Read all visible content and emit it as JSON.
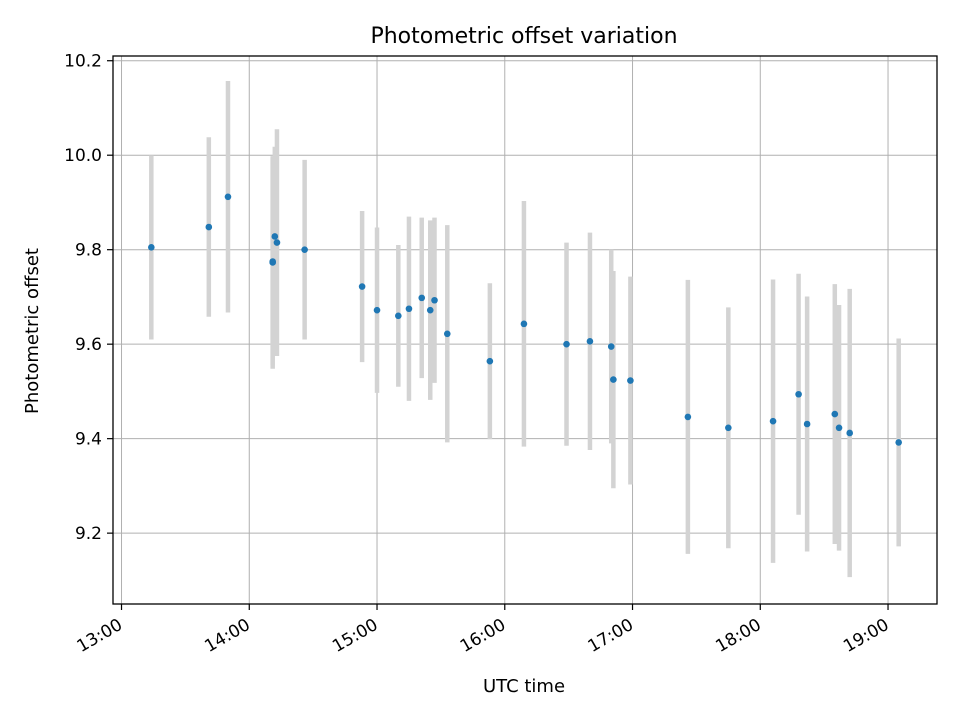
{
  "chart_data": {
    "type": "scatter",
    "title": "Photometric offset variation",
    "xlabel": "UTC time",
    "ylabel": "Photometric offset",
    "xlim": [
      "12:56",
      "19:23"
    ],
    "ylim": [
      9.05,
      10.21
    ],
    "grid": true,
    "x_ticks": [
      "13:00",
      "14:00",
      "15:00",
      "16:00",
      "17:00",
      "18:00",
      "19:00"
    ],
    "y_ticks": [
      9.2,
      9.4,
      9.6,
      9.8,
      10.0,
      10.2
    ],
    "y_tick_labels": [
      "9.2",
      "9.4",
      "9.6",
      "9.8",
      "10.0",
      "10.2"
    ],
    "colors": {
      "point": "#1f77b4",
      "errorbar": "#d3d3d3",
      "grid": "#b0b0b0"
    },
    "points": [
      {
        "x": "13:14",
        "y": 9.805,
        "yerr": 0.195
      },
      {
        "x": "13:41",
        "y": 9.848,
        "yerr": 0.19
      },
      {
        "x": "13:50",
        "y": 9.912,
        "yerr": 0.245
      },
      {
        "x": "14:11",
        "y": 9.773,
        "yerr": 0.225
      },
      {
        "x": "14:11",
        "y": 9.775,
        "yerr": 0.22
      },
      {
        "x": "14:12",
        "y": 9.828,
        "yerr": 0.19
      },
      {
        "x": "14:13",
        "y": 9.815,
        "yerr": 0.24
      },
      {
        "x": "14:26",
        "y": 9.8,
        "yerr": 0.19
      },
      {
        "x": "14:53",
        "y": 9.722,
        "yerr": 0.16
      },
      {
        "x": "15:00",
        "y": 9.672,
        "yerr": 0.175
      },
      {
        "x": "15:10",
        "y": 9.66,
        "yerr": 0.15
      },
      {
        "x": "15:15",
        "y": 9.675,
        "yerr": 0.195
      },
      {
        "x": "15:21",
        "y": 9.698,
        "yerr": 0.17
      },
      {
        "x": "15:25",
        "y": 9.672,
        "yerr": 0.19
      },
      {
        "x": "15:27",
        "y": 9.693,
        "yerr": 0.175
      },
      {
        "x": "15:33",
        "y": 9.622,
        "yerr": 0.23
      },
      {
        "x": "15:53",
        "y": 9.564,
        "yerr": 0.165
      },
      {
        "x": "16:09",
        "y": 9.643,
        "yerr": 0.26
      },
      {
        "x": "16:29",
        "y": 9.6,
        "yerr": 0.215
      },
      {
        "x": "16:40",
        "y": 9.606,
        "yerr": 0.23
      },
      {
        "x": "16:50",
        "y": 9.595,
        "yerr": 0.205
      },
      {
        "x": "16:51",
        "y": 9.525,
        "yerr": 0.23
      },
      {
        "x": "16:59",
        "y": 9.523,
        "yerr": 0.22
      },
      {
        "x": "17:26",
        "y": 9.446,
        "yerr": 0.29
      },
      {
        "x": "17:45",
        "y": 9.423,
        "yerr": 0.255
      },
      {
        "x": "18:06",
        "y": 9.437,
        "yerr": 0.3
      },
      {
        "x": "18:18",
        "y": 9.494,
        "yerr": 0.255
      },
      {
        "x": "18:22",
        "y": 9.431,
        "yerr": 0.27
      },
      {
        "x": "18:35",
        "y": 9.452,
        "yerr": 0.275
      },
      {
        "x": "18:37",
        "y": 9.423,
        "yerr": 0.26
      },
      {
        "x": "18:42",
        "y": 9.412,
        "yerr": 0.305
      },
      {
        "x": "19:05",
        "y": 9.392,
        "yerr": 0.22
      }
    ]
  }
}
